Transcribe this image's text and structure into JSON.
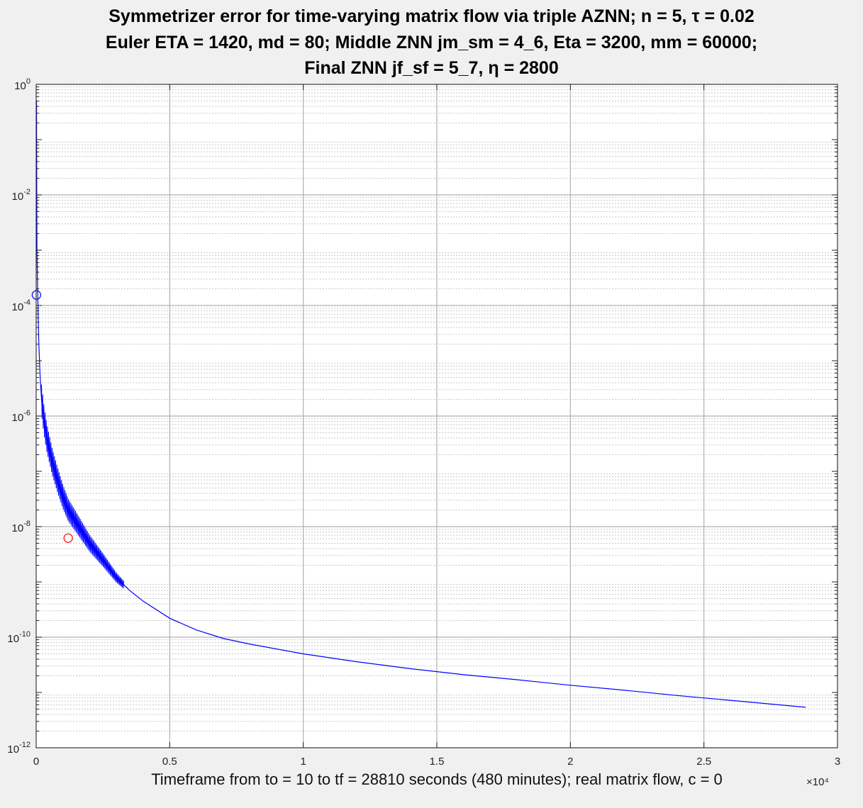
{
  "chart_data": {
    "type": "line",
    "title_lines": [
      "Symmetrizer error for time-varying matrix flow via triple AZNN;  n = 5,  τ = 0.02",
      "Euler ETA = 1420,  md = 80;  Middle ZNN  jm_sm = 4_6,  Eta = 3200,  mm = 60000;",
      "Final ZNN  jf_sf = 5_7, η = 2800"
    ],
    "xlabel": "Timeframe from to = 10 to tf = 28810 seconds (480 minutes);  real matrix flow, c = 0",
    "x_multiplier_label": "×10⁴",
    "x_scale": 10000,
    "xlim": [
      0,
      30000
    ],
    "ylim": [
      1e-12,
      1
    ],
    "yscale": "log",
    "grid": true,
    "minor_grid": true,
    "x_ticks": [
      0,
      5000,
      10000,
      15000,
      20000,
      25000,
      30000
    ],
    "x_tick_labels": [
      "0",
      "0.5",
      "1",
      "1.5",
      "2",
      "2.5",
      "3"
    ],
    "y_ticks": [
      1e-12,
      1e-10,
      1e-08,
      1e-06,
      0.0001,
      0.01,
      1
    ],
    "y_tick_labels": [
      {
        "base": "10",
        "exp": "-12"
      },
      {
        "base": "10",
        "exp": "-10"
      },
      {
        "base": "10",
        "exp": "-8"
      },
      {
        "base": "10",
        "exp": "-6"
      },
      {
        "base": "10",
        "exp": "-4"
      },
      {
        "base": "10",
        "exp": "-2"
      },
      {
        "base": "10",
        "exp": "0"
      }
    ],
    "series": [
      {
        "color": "#0000ff",
        "x": [
          10,
          30,
          60,
          100,
          150,
          200,
          300,
          400,
          600,
          800,
          1000,
          1200,
          1500,
          2000,
          2500,
          3000,
          3500,
          4000,
          5000,
          6000,
          7000,
          8000,
          10000,
          12000,
          14000,
          16000,
          18000,
          20000,
          22000,
          24000,
          26000,
          28810
        ],
        "y": [
          0.5,
          0.001,
          0.00015,
          2e-05,
          5e-06,
          2e-06,
          8e-07,
          4e-07,
          1.5e-07,
          7e-08,
          3.5e-08,
          2e-08,
          1.2e-08,
          5e-09,
          2.5e-09,
          1.2e-09,
          7e-10,
          4.5e-10,
          2.2e-10,
          1.35e-10,
          9.5e-11,
          7.5e-11,
          5e-11,
          3.6e-11,
          2.7e-11,
          2.1e-11,
          1.7e-11,
          1.35e-11,
          1.1e-11,
          8.8e-12,
          7.2e-12,
          5.4e-12
        ],
        "noise_band_until": 3300
      }
    ],
    "markers": [
      {
        "x": 10,
        "y": 0.000155,
        "color": "#0000ff",
        "shape": "circle"
      },
      {
        "x": 1200,
        "y": 6.2e-09,
        "color": "#ff0000",
        "shape": "circle"
      }
    ]
  }
}
